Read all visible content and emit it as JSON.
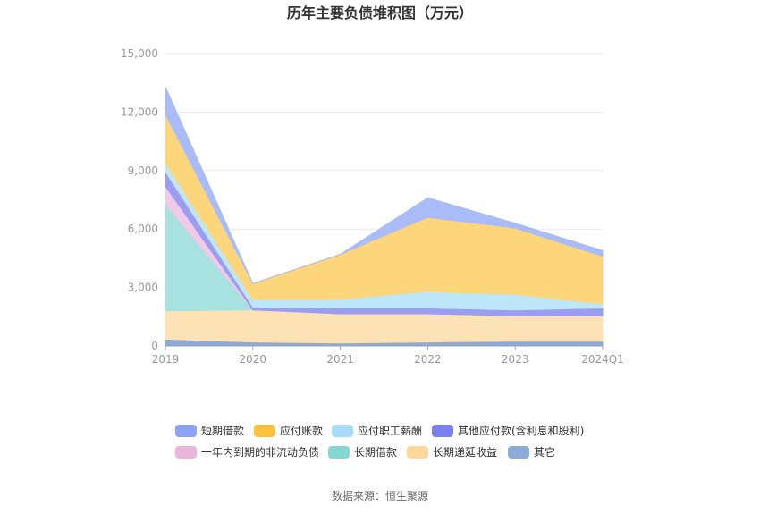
{
  "chart_data": {
    "type": "area",
    "title": "历年主要负债堆积图（万元）",
    "x": [
      "2019",
      "2020",
      "2021",
      "2022",
      "2023",
      "2024Q1"
    ],
    "ylim": [
      0,
      15000
    ],
    "yticks": [
      "0",
      "3,000",
      "6,000",
      "9,000",
      "12,000",
      "15,000"
    ],
    "stacked": true,
    "grid": true,
    "legend_position": "bottom",
    "series": [
      {
        "name": "其它",
        "color": "#8eaad9",
        "values": [
          350,
          200,
          150,
          200,
          250,
          250
        ]
      },
      {
        "name": "长期递延收益",
        "color": "#fde2b5",
        "values": [
          1450,
          1650,
          1500,
          1450,
          1300,
          1300
        ]
      },
      {
        "name": "长期借款",
        "color": "#a8e2e0",
        "values": [
          5500,
          0,
          0,
          0,
          0,
          0
        ]
      },
      {
        "name": "一年内到期的非流动负债",
        "color": "#f0cae6",
        "values": [
          900,
          0,
          0,
          0,
          0,
          0
        ]
      },
      {
        "name": "其他应付款(含利息和股利)",
        "color": "#9b9cf2",
        "values": [
          750,
          150,
          300,
          300,
          300,
          400
        ]
      },
      {
        "name": "应付职工薪酬",
        "color": "#bde6f8",
        "values": [
          450,
          400,
          450,
          850,
          800,
          200
        ]
      },
      {
        "name": "应付账款",
        "color": "#fdd57a",
        "values": [
          2500,
          800,
          2300,
          3800,
          3400,
          2450
        ]
      },
      {
        "name": "短期借款",
        "color": "#a9bcf7",
        "values": [
          1400,
          0,
          0,
          1000,
          250,
          300
        ]
      }
    ]
  },
  "legend_icon_colors": {
    "短期借款": "#8ba3f5",
    "应付账款": "#fcc23d",
    "应付职工薪酬": "#a6dcf8",
    "其他应付款(含利息和股利)": "#7b7ff2",
    "一年内到期的非流动负债": "#eab6db",
    "长期借款": "#86d6d2",
    "长期递延收益": "#fdd89a",
    "其它": "#8eaad9"
  },
  "source": "数据来源：恒生聚源"
}
